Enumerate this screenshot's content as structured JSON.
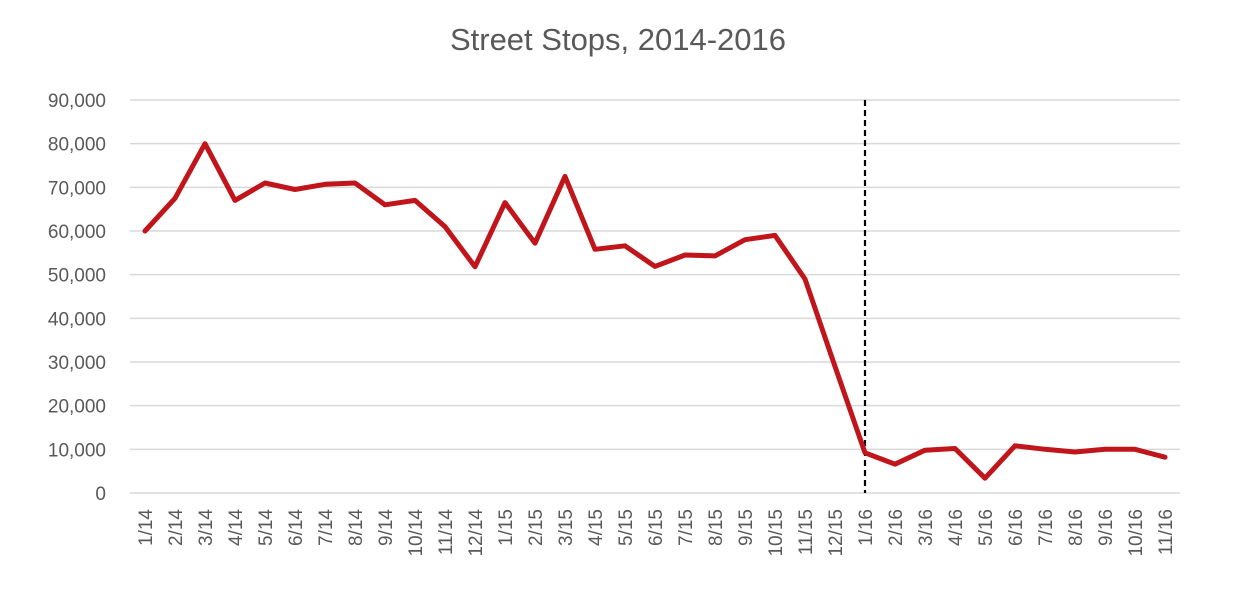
{
  "chart_data": {
    "type": "line",
    "title": "Street Stops, 2014-2016",
    "xlabel": "",
    "ylabel": "",
    "ylim": [
      0,
      90000
    ],
    "yticks": [
      0,
      10000,
      20000,
      30000,
      40000,
      50000,
      60000,
      70000,
      80000,
      90000
    ],
    "ytick_labels": [
      "0",
      "10,000",
      "20,000",
      "30,000",
      "40,000",
      "50,000",
      "60,000",
      "70,000",
      "80,000",
      "90,000"
    ],
    "grid": "horizontal",
    "legend": "none",
    "categories": [
      "1/14",
      "2/14",
      "3/14",
      "4/14",
      "5/14",
      "6/14",
      "7/14",
      "8/14",
      "9/14",
      "10/14",
      "11/14",
      "12/14",
      "1/15",
      "2/15",
      "3/15",
      "4/15",
      "5/15",
      "6/15",
      "7/15",
      "8/15",
      "9/15",
      "10/15",
      "11/15",
      "12/15",
      "1/16",
      "2/16",
      "3/16",
      "4/16",
      "5/16",
      "6/16",
      "7/16",
      "8/16",
      "9/16",
      "10/16",
      "11/16"
    ],
    "series": [
      {
        "color": "#c0151b",
        "values": [
          60000,
          67500,
          80000,
          67000,
          71000,
          69500,
          70700,
          71000,
          66000,
          67000,
          61000,
          51800,
          66500,
          57200,
          72500,
          55800,
          56600,
          51900,
          54500,
          54300,
          58000,
          59000,
          49000,
          29000,
          9200,
          6600,
          9800,
          10200,
          3400,
          10800,
          10000,
          9400,
          10000,
          10000,
          8200
        ]
      }
    ],
    "annotations": [
      {
        "type": "vertical-dashed-line",
        "x": "1/16",
        "color": "#000000"
      }
    ]
  }
}
